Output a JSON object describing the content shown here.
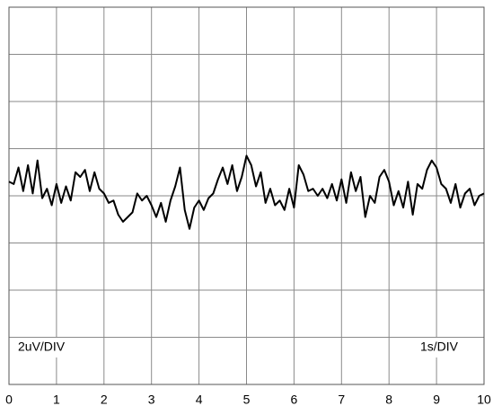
{
  "chart_data": {
    "type": "line",
    "x": [
      0,
      0.1,
      0.2,
      0.3,
      0.4,
      0.5,
      0.6,
      0.7,
      0.8,
      0.9,
      1,
      1.1,
      1.2,
      1.3,
      1.4,
      1.5,
      1.6,
      1.7,
      1.8,
      1.9,
      2,
      2.1,
      2.2,
      2.3,
      2.4,
      2.5,
      2.6,
      2.7,
      2.8,
      2.9,
      3,
      3.1,
      3.2,
      3.3,
      3.4,
      3.5,
      3.6,
      3.7,
      3.8,
      3.9,
      4,
      4.1,
      4.2,
      4.3,
      4.4,
      4.5,
      4.6,
      4.7,
      4.8,
      4.9,
      5,
      5.1,
      5.2,
      5.3,
      5.4,
      5.5,
      5.6,
      5.7,
      5.8,
      5.9,
      6,
      6.1,
      6.2,
      6.3,
      6.4,
      6.5,
      6.6,
      6.7,
      6.8,
      6.9,
      7,
      7.1,
      7.2,
      7.3,
      7.4,
      7.5,
      7.6,
      7.7,
      7.8,
      7.9,
      8,
      8.1,
      8.2,
      8.3,
      8.4,
      8.5,
      8.6,
      8.7,
      8.8,
      8.9,
      9,
      9.1,
      9.2,
      9.3,
      9.4,
      9.5,
      9.6,
      9.7,
      9.8,
      9.9,
      10
    ],
    "series": [
      {
        "color": "#000000",
        "values": [
          0.6,
          0.5,
          1.2,
          0.2,
          1.3,
          0.1,
          1.5,
          -0.1,
          0.3,
          -0.4,
          0.5,
          -0.3,
          0.4,
          -0.2,
          1.0,
          0.8,
          1.1,
          0.2,
          1.0,
          0.3,
          0.1,
          -0.3,
          -0.2,
          -0.8,
          -1.1,
          -0.9,
          -0.7,
          0.1,
          -0.2,
          0.0,
          -0.4,
          -0.9,
          -0.3,
          -1.1,
          -0.2,
          0.4,
          1.2,
          -0.6,
          -1.4,
          -0.5,
          -0.2,
          -0.6,
          -0.1,
          0.1,
          0.7,
          1.2,
          0.5,
          1.3,
          0.2,
          0.8,
          1.7,
          1.3,
          0.4,
          1.0,
          -0.3,
          0.3,
          -0.4,
          -0.2,
          -0.6,
          0.3,
          -0.5,
          1.3,
          0.9,
          0.2,
          0.3,
          0.0,
          0.3,
          -0.1,
          0.5,
          -0.2,
          0.7,
          -0.3,
          1.0,
          0.2,
          0.8,
          -0.9,
          0.0,
          -0.3,
          0.8,
          1.1,
          0.6,
          -0.4,
          0.2,
          -0.5,
          0.6,
          -0.8,
          0.5,
          0.3,
          1.1,
          1.5,
          1.2,
          0.5,
          0.3,
          -0.3,
          0.5,
          -0.5,
          0.1,
          0.3,
          -0.4,
          0.0,
          0.1
        ]
      }
    ],
    "xlim": [
      0,
      10
    ],
    "xticks": [
      0,
      1,
      2,
      3,
      4,
      5,
      6,
      7,
      8,
      9,
      10
    ],
    "ylim": [
      -8,
      8
    ],
    "yticks": [
      -8,
      -6,
      -4,
      -2,
      0,
      2,
      4,
      6,
      8
    ],
    "grid": true,
    "annotations": [
      "2uV/DIV",
      "1s/DIV"
    ]
  }
}
